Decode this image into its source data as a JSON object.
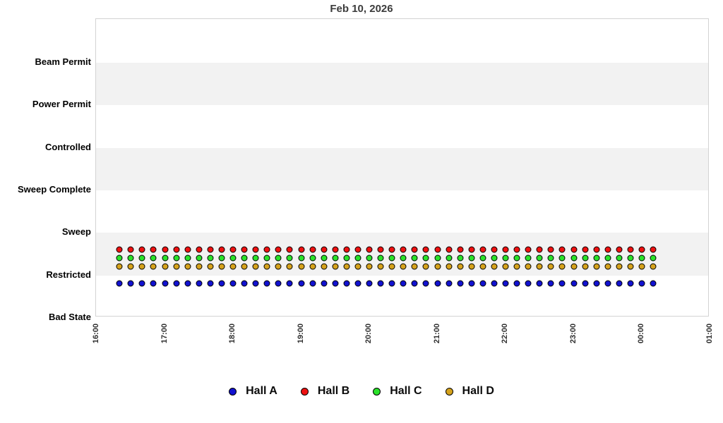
{
  "chart": {
    "title": "Feb 10, 2026"
  },
  "legend": {
    "items": [
      {
        "label": "Hall A",
        "color": "#1212D0"
      },
      {
        "label": "Hall B",
        "color": "#EE1111"
      },
      {
        "label": "Hall C",
        "color": "#2AE22A"
      },
      {
        "label": "Hall D",
        "color": "#D5A21C"
      }
    ]
  },
  "colors": {
    "band_gray": "#f2f2f2",
    "plot_border": "#d3d3d3",
    "title_text": "#3c3c3c"
  },
  "chart_data": {
    "type": "scatter",
    "title": "Feb 10, 2026",
    "x_axis": {
      "tick_labels": [
        "16:00",
        "17:00",
        "18:00",
        "19:00",
        "20:00",
        "21:00",
        "22:00",
        "23:00",
        "00:00",
        "01:00"
      ],
      "start": "16:00",
      "end": "01:00"
    },
    "y_axis": {
      "categories_top_to_bottom": [
        "Beam Permit",
        "Power Permit",
        "Controlled",
        "Sweep Complete",
        "Sweep",
        "Restricted",
        "Bad State"
      ]
    },
    "sample_interval_minutes": 10,
    "times": [
      "16:20",
      "16:30",
      "16:40",
      "16:50",
      "17:00",
      "17:10",
      "17:20",
      "17:30",
      "17:40",
      "17:50",
      "18:00",
      "18:10",
      "18:20",
      "18:30",
      "18:40",
      "18:50",
      "19:00",
      "19:10",
      "19:20",
      "19:30",
      "19:40",
      "19:50",
      "20:00",
      "20:10",
      "20:20",
      "20:30",
      "20:40",
      "20:50",
      "21:00",
      "21:10",
      "21:20",
      "21:30",
      "21:40",
      "21:50",
      "22:00",
      "22:10",
      "22:20",
      "22:30",
      "22:40",
      "22:50",
      "23:00",
      "23:10",
      "23:20",
      "23:30",
      "23:40",
      "23:50",
      "00:00",
      "00:10"
    ],
    "series": [
      {
        "name": "Hall A",
        "color": "#1212D0",
        "state_at_all_times": "Restricted"
      },
      {
        "name": "Hall B",
        "color": "#EE1111",
        "state_at_all_times": "Restricted"
      },
      {
        "name": "Hall C",
        "color": "#2AE22A",
        "state_at_all_times": "Restricted"
      },
      {
        "name": "Hall D",
        "color": "#D5A21C",
        "state_at_all_times": "Restricted"
      }
    ],
    "legend_position": "bottom-center",
    "grid": "alternating horizontal category bands"
  }
}
